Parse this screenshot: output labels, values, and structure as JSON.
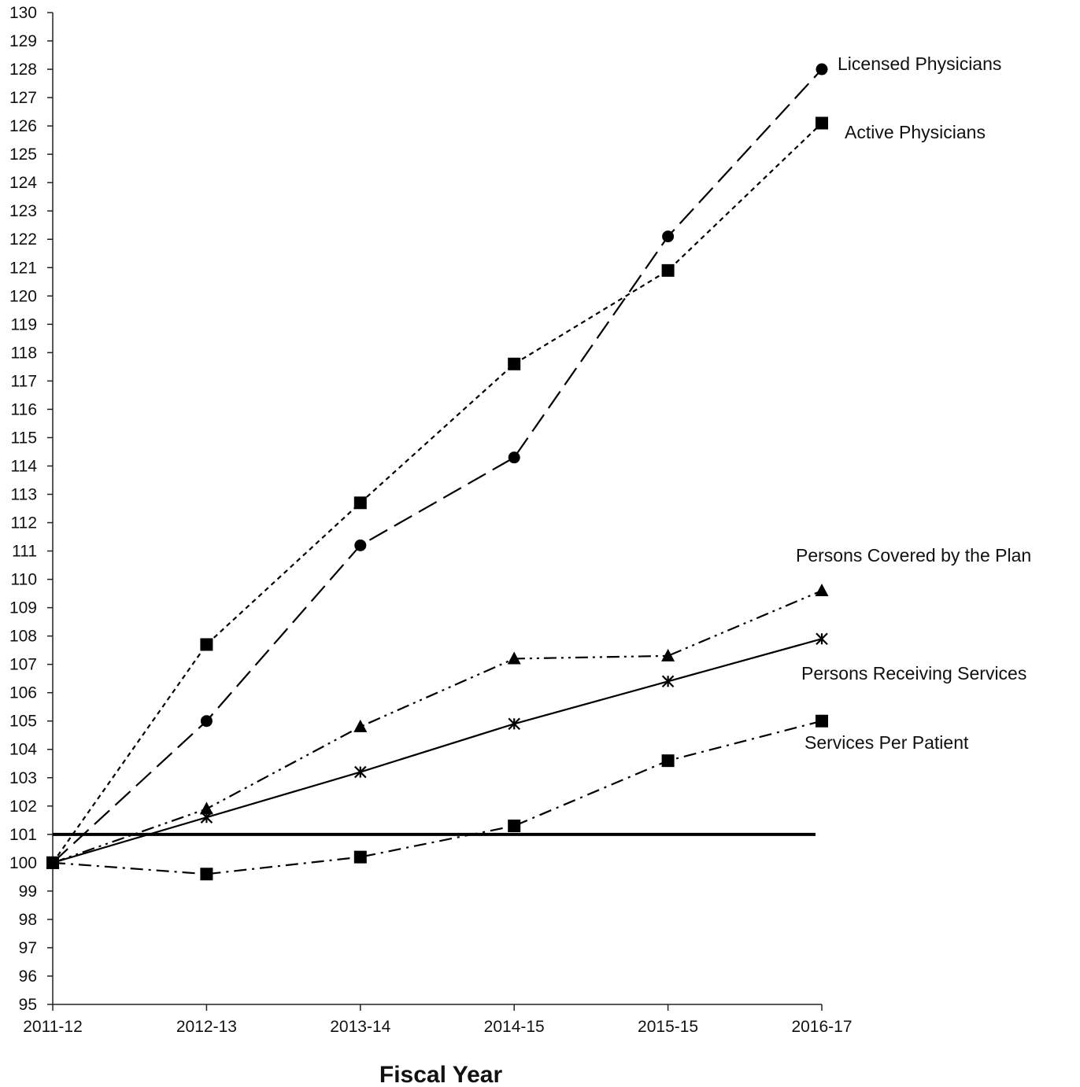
{
  "chart_data": {
    "type": "line",
    "xlabel": "Fiscal Year",
    "ylabel": "",
    "ylim": [
      95,
      130
    ],
    "ytick_step": 1,
    "grid": false,
    "categories": [
      "2011-12",
      "2012-13",
      "2013-14",
      "2014-15",
      "2015-15",
      "2016-17"
    ],
    "reference_line": {
      "value": 101,
      "style": "solid-thick"
    },
    "series": [
      {
        "name": "Licensed Physicians",
        "values": [
          100,
          105.0,
          111.2,
          114.3,
          122.1,
          128.0
        ],
        "marker": "circle",
        "dash": "long-dash"
      },
      {
        "name": "Active Physicians",
        "values": [
          100,
          107.7,
          112.7,
          117.6,
          120.9,
          126.1
        ],
        "marker": "square",
        "dash": "short-dash"
      },
      {
        "name": "Persons Covered by the Plan",
        "values": [
          100,
          101.9,
          104.8,
          107.2,
          107.3,
          109.6
        ],
        "marker": "triangle",
        "dash": "dash-dot-dot"
      },
      {
        "name": "Persons Receiving Services",
        "values": [
          100,
          101.6,
          103.2,
          104.9,
          106.4,
          107.9
        ],
        "marker": "asterisk",
        "dash": "solid"
      },
      {
        "name": "Services Per Patient",
        "values": [
          100,
          99.6,
          100.2,
          101.3,
          103.6,
          105.0
        ],
        "marker": "square",
        "dash": "dash-dot"
      }
    ]
  }
}
